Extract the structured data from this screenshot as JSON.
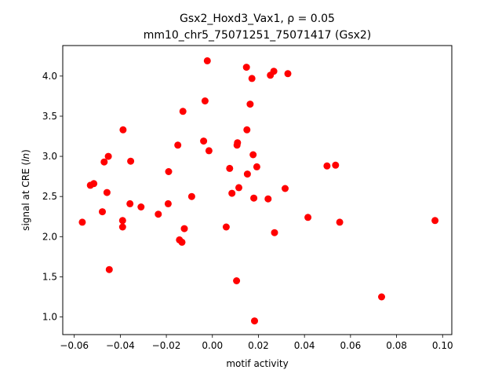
{
  "chart_data": {
    "type": "scatter",
    "title_line1": "Gsx2_Hoxd3_Vax1, ρ = 0.05",
    "title_line2": "mm10_chr5_75071251_75071417 (Gsx2)",
    "xlabel": "motif activity",
    "ylabel": "signal at CRE (ln)",
    "xlim": [
      -0.065,
      0.104
    ],
    "ylim": [
      0.78,
      4.38
    ],
    "xticks": [
      -0.06,
      -0.04,
      -0.02,
      0.0,
      0.02,
      0.04,
      0.06,
      0.08,
      0.1
    ],
    "xtick_labels": [
      "−0.06",
      "−0.04",
      "−0.02",
      "0.00",
      "0.02",
      "0.04",
      "0.06",
      "0.08",
      "0.10"
    ],
    "yticks": [
      1.0,
      1.5,
      2.0,
      2.5,
      3.0,
      3.5,
      4.0
    ],
    "ytick_labels": [
      "1.0",
      "1.5",
      "2.0",
      "2.5",
      "3.0",
      "3.5",
      "4.0"
    ],
    "grid": false,
    "marker_color": "#ff0000",
    "points": [
      {
        "x": -0.0565,
        "y": 2.18
      },
      {
        "x": -0.053,
        "y": 2.64
      },
      {
        "x": -0.0515,
        "y": 2.66
      },
      {
        "x": -0.0478,
        "y": 2.31
      },
      {
        "x": -0.047,
        "y": 2.93
      },
      {
        "x": -0.0458,
        "y": 2.55
      },
      {
        "x": -0.0452,
        "y": 3.0
      },
      {
        "x": -0.0448,
        "y": 1.59
      },
      {
        "x": -0.0388,
        "y": 3.33
      },
      {
        "x": -0.039,
        "y": 2.2
      },
      {
        "x": -0.039,
        "y": 2.12
      },
      {
        "x": -0.0358,
        "y": 2.41
      },
      {
        "x": -0.0355,
        "y": 2.94
      },
      {
        "x": -0.031,
        "y": 2.37
      },
      {
        "x": -0.0235,
        "y": 2.28
      },
      {
        "x": -0.019,
        "y": 2.81
      },
      {
        "x": -0.0192,
        "y": 2.41
      },
      {
        "x": -0.015,
        "y": 3.14
      },
      {
        "x": -0.0143,
        "y": 1.96
      },
      {
        "x": -0.0132,
        "y": 1.93
      },
      {
        "x": -0.0128,
        "y": 3.56
      },
      {
        "x": -0.0122,
        "y": 2.1
      },
      {
        "x": -0.009,
        "y": 2.5
      },
      {
        "x": -0.0038,
        "y": 3.19
      },
      {
        "x": -0.0032,
        "y": 3.69
      },
      {
        "x": -0.0022,
        "y": 4.19
      },
      {
        "x": -0.0015,
        "y": 3.07
      },
      {
        "x": 0.006,
        "y": 2.12
      },
      {
        "x": 0.0075,
        "y": 2.85
      },
      {
        "x": 0.0085,
        "y": 2.54
      },
      {
        "x": 0.0105,
        "y": 1.45
      },
      {
        "x": 0.0107,
        "y": 3.14
      },
      {
        "x": 0.0109,
        "y": 3.17
      },
      {
        "x": 0.0115,
        "y": 2.61
      },
      {
        "x": 0.0148,
        "y": 4.11
      },
      {
        "x": 0.015,
        "y": 3.33
      },
      {
        "x": 0.0152,
        "y": 2.78
      },
      {
        "x": 0.0164,
        "y": 3.65
      },
      {
        "x": 0.0172,
        "y": 3.97
      },
      {
        "x": 0.0177,
        "y": 3.02
      },
      {
        "x": 0.018,
        "y": 2.48
      },
      {
        "x": 0.0183,
        "y": 0.95
      },
      {
        "x": 0.0193,
        "y": 2.87
      },
      {
        "x": 0.0242,
        "y": 2.47
      },
      {
        "x": 0.0252,
        "y": 4.01
      },
      {
        "x": 0.0267,
        "y": 4.06
      },
      {
        "x": 0.027,
        "y": 2.05
      },
      {
        "x": 0.0316,
        "y": 2.6
      },
      {
        "x": 0.0328,
        "y": 4.03
      },
      {
        "x": 0.0415,
        "y": 2.24
      },
      {
        "x": 0.0498,
        "y": 2.88
      },
      {
        "x": 0.0535,
        "y": 2.89
      },
      {
        "x": 0.0553,
        "y": 2.18
      },
      {
        "x": 0.0735,
        "y": 1.25
      },
      {
        "x": 0.0967,
        "y": 2.2
      }
    ]
  }
}
